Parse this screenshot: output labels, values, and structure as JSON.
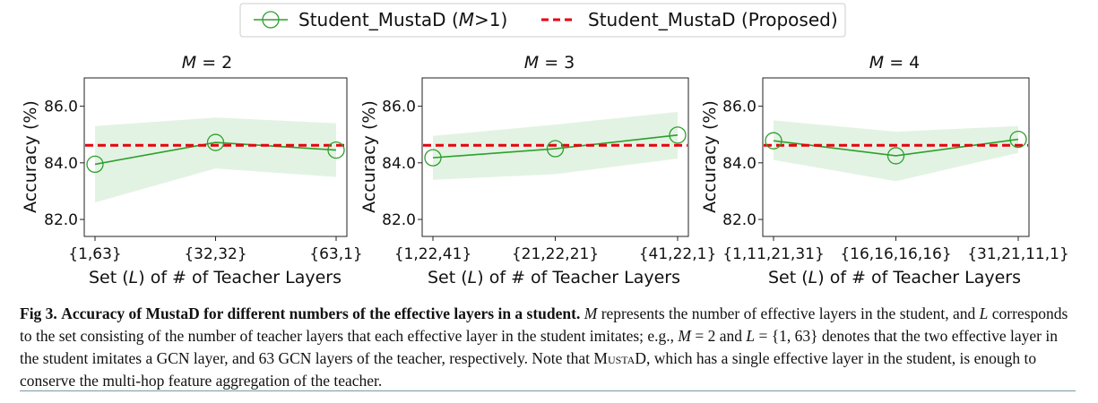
{
  "legend": {
    "series_label_prefix": "Student_MustaD (",
    "series_label_math": "M",
    "series_label_suffix": ">1)",
    "baseline_label": "Student_MustaD (Proposed)"
  },
  "colors": {
    "series": "#2ca02c",
    "band": "#e3f3e3",
    "baseline": "#e8000b"
  },
  "chart_data": [
    {
      "type": "line",
      "title_var": "M",
      "title_eq": " = 2",
      "categories": [
        "{1,63}",
        "{32,32}",
        "{63,1}"
      ],
      "values": [
        83.95,
        84.72,
        84.45
      ],
      "band_lower": [
        82.6,
        83.8,
        83.5
      ],
      "band_upper": [
        85.3,
        85.6,
        85.4
      ],
      "baseline": 84.62,
      "ylim": [
        81.4,
        87.0
      ],
      "yticks": [
        "82.0",
        "84.0",
        "86.0"
      ],
      "ytick_values": [
        82,
        84,
        86
      ],
      "xlabel_pre": "Set (",
      "xlabel_var": "L",
      "xlabel_post": ") of # of Teacher Layers",
      "ylabel": "Accuracy (%)"
    },
    {
      "type": "line",
      "title_var": "M",
      "title_eq": " = 3",
      "categories": [
        "{1,22,41}",
        "{21,22,21}",
        "{41,22,1}"
      ],
      "values": [
        84.18,
        84.5,
        84.98
      ],
      "band_lower": [
        83.4,
        83.6,
        84.15
      ],
      "band_upper": [
        84.95,
        85.35,
        85.8
      ],
      "baseline": 84.62,
      "ylim": [
        81.4,
        87.0
      ],
      "yticks": [
        "82.0",
        "84.0",
        "86.0"
      ],
      "ytick_values": [
        82,
        84,
        86
      ],
      "xlabel_pre": "Set (",
      "xlabel_var": "L",
      "xlabel_post": ") of # of Teacher Layers",
      "ylabel": "Accuracy (%)"
    },
    {
      "type": "line",
      "title_var": "M",
      "title_eq": " = 4",
      "categories": [
        "{1,11,21,31}",
        "{16,16,16,16}",
        "{31,21,11,1}"
      ],
      "values": [
        84.78,
        84.25,
        84.83
      ],
      "band_lower": [
        84.1,
        83.35,
        84.35
      ],
      "band_upper": [
        85.5,
        85.1,
        85.3
      ],
      "baseline": 84.62,
      "ylim": [
        81.4,
        87.0
      ],
      "yticks": [
        "82.0",
        "84.0",
        "86.0"
      ],
      "ytick_values": [
        82,
        84,
        86
      ],
      "xlabel_pre": "Set (",
      "xlabel_var": "L",
      "xlabel_post": ") of # of Teacher Layers",
      "ylabel": "Accuracy (%)"
    }
  ],
  "caption": {
    "label": "Fig 3.",
    "bold_title": "Accuracy of MustaD for different numbers of the effective layers in a student.",
    "var_M": "M",
    "text_1": "represents the number of effective layers in the student, and",
    "var_L": "L",
    "text_2": "corresponds to the set consisting of the number of teacher layers that each effective layer in the student imitates; e.g.,",
    "eq_M": "M",
    "eq_M_val": "= 2 and",
    "eq_L": "L",
    "eq_L_val": "= {1, 63} denotes that the two effective layer in the student imitates a GCN layer, and 63 GCN layers of the teacher, respectively. Note that",
    "mustad_sc": "MustaD",
    "text_3": ", which has a single effective layer in the student, is enough to conserve the multi-hop feature aggregation of the teacher."
  }
}
